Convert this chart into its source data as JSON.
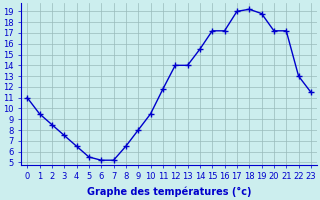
{
  "hours": [
    0,
    1,
    2,
    3,
    4,
    5,
    6,
    7,
    8,
    9,
    10,
    11,
    12,
    13,
    14,
    15,
    16,
    17,
    18,
    19,
    20,
    21,
    22,
    23
  ],
  "temperatures": [
    11,
    9.5,
    8.5,
    7.5,
    6.5,
    5.5,
    5.2,
    5.2,
    6.5,
    8.0,
    9.5,
    11.8,
    14.0,
    14.0,
    15.5,
    17.2,
    17.2,
    19.0,
    19.2,
    18.8,
    17.2,
    17.2,
    13.0,
    11.5
  ],
  "line_color": "#0000cc",
  "marker": "+",
  "marker_size": 4,
  "marker_lw": 1.0,
  "bg_color": "#cceeee",
  "grid_color": "#99bbbb",
  "xlabel": "Graphe des températures (°c)",
  "xlabel_color": "#0000cc",
  "xlabel_fontsize": 7,
  "xlabel_fontweight": "bold",
  "tick_color": "#0000cc",
  "tick_fontsize": 6,
  "ylim": [
    4.8,
    19.8
  ],
  "xlim": [
    -0.5,
    23.5
  ],
  "yticks": [
    5,
    6,
    7,
    8,
    9,
    10,
    11,
    12,
    13,
    14,
    15,
    16,
    17,
    18,
    19
  ],
  "xticks": [
    0,
    1,
    2,
    3,
    4,
    5,
    6,
    7,
    8,
    9,
    10,
    11,
    12,
    13,
    14,
    15,
    16,
    17,
    18,
    19,
    20,
    21,
    22,
    23
  ],
  "line_width": 1.0,
  "spine_color": "#0000cc"
}
